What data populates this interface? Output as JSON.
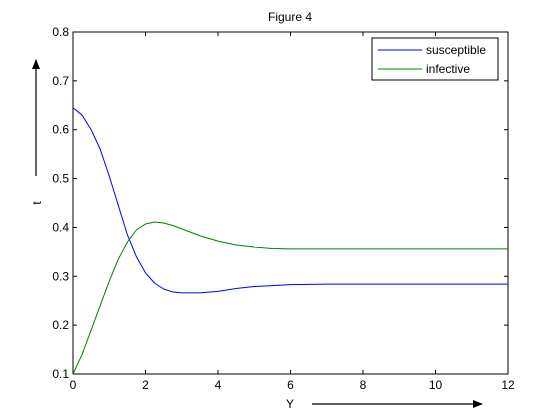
{
  "chart_data": {
    "type": "line",
    "title": "Figure 4",
    "xlabel": "Y",
    "ylabel": "t",
    "xlim": [
      0,
      12
    ],
    "ylim": [
      0.1,
      0.8
    ],
    "x_ticks": [
      "0",
      "2",
      "4",
      "6",
      "8",
      "10",
      "12"
    ],
    "y_ticks": [
      "0.1",
      "0.2",
      "0.3",
      "0.4",
      "0.5",
      "0.6",
      "0.7",
      "0.8"
    ],
    "grid": false,
    "legend_position": "top-right",
    "series": [
      {
        "name": "susceptible",
        "color": "#0000ff",
        "x": [
          0,
          0.25,
          0.5,
          0.75,
          1.0,
          1.25,
          1.5,
          1.75,
          2.0,
          2.25,
          2.5,
          2.75,
          3.0,
          3.5,
          4.0,
          4.5,
          5.0,
          5.5,
          6.0,
          7.0,
          8.0,
          9.0,
          10.0,
          11.0,
          12.0
        ],
        "y": [
          0.645,
          0.63,
          0.6,
          0.56,
          0.505,
          0.445,
          0.385,
          0.34,
          0.307,
          0.286,
          0.274,
          0.268,
          0.266,
          0.266,
          0.269,
          0.275,
          0.279,
          0.281,
          0.283,
          0.284,
          0.284,
          0.284,
          0.284,
          0.284,
          0.284
        ]
      },
      {
        "name": "infective",
        "color": "#008000",
        "x": [
          0,
          0.25,
          0.5,
          0.75,
          1.0,
          1.25,
          1.5,
          1.75,
          2.0,
          2.25,
          2.5,
          2.75,
          3.0,
          3.5,
          4.0,
          4.5,
          5.0,
          5.5,
          6.0,
          7.0,
          8.0,
          9.0,
          10.0,
          11.0,
          12.0
        ],
        "y": [
          0.1,
          0.14,
          0.19,
          0.24,
          0.29,
          0.335,
          0.37,
          0.395,
          0.407,
          0.411,
          0.409,
          0.404,
          0.397,
          0.383,
          0.372,
          0.364,
          0.36,
          0.357,
          0.356,
          0.356,
          0.356,
          0.356,
          0.356,
          0.356,
          0.356
        ]
      }
    ]
  }
}
